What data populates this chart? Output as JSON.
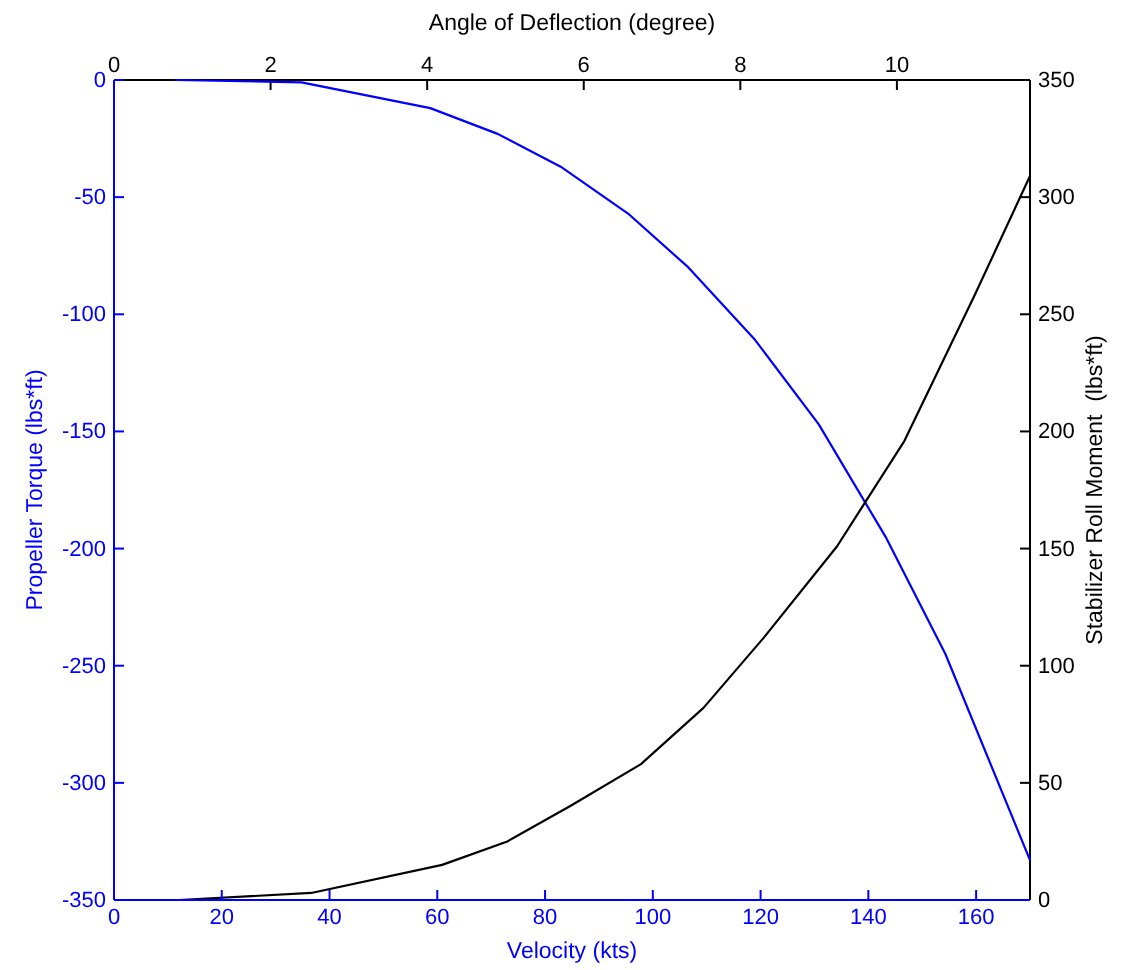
{
  "chart_data": {
    "type": "line",
    "xlabel": "Velocity (kts)",
    "ylabel": "Propeller Torque (lbs*ft)",
    "y2label": "Stabilizer Roll Moment  (lbs*ft)",
    "x2label": "Angle of Deflection (degree)",
    "xlim": [
      0,
      170
    ],
    "xticks": [
      0,
      20,
      40,
      60,
      80,
      100,
      120,
      140,
      160
    ],
    "x2lim": [
      0,
      11.7
    ],
    "x2ticks": [
      0,
      2,
      4,
      6,
      8,
      10
    ],
    "ylim": [
      -350,
      0
    ],
    "yticks": [
      -350,
      -300,
      -250,
      -200,
      -150,
      -100,
      -50,
      0
    ],
    "y2lim": [
      0,
      350
    ],
    "y2ticks": [
      0,
      50,
      100,
      150,
      200,
      250,
      300,
      350
    ],
    "series": [
      {
        "color": "#0000ff",
        "x": [
          11.5,
          34.8,
          58.7,
          71.2,
          82.9,
          95.4,
          106.6,
          119,
          130.8,
          143.2,
          154.3,
          170
        ],
        "values": [
          0,
          -1,
          -12,
          -23,
          -37,
          -57,
          -80,
          -111,
          -147,
          -195,
          -245,
          -333
        ]
      },
      {
        "color": "#000000",
        "axis": "y2",
        "x": [
          12.1,
          36.6,
          60.9,
          73,
          84.6,
          97.8,
          109.4,
          120.6,
          134.2,
          146.7,
          159.7,
          170
        ],
        "values": [
          0,
          3,
          15,
          25,
          40,
          58,
          82,
          112,
          151,
          196,
          258,
          309
        ]
      }
    ]
  }
}
